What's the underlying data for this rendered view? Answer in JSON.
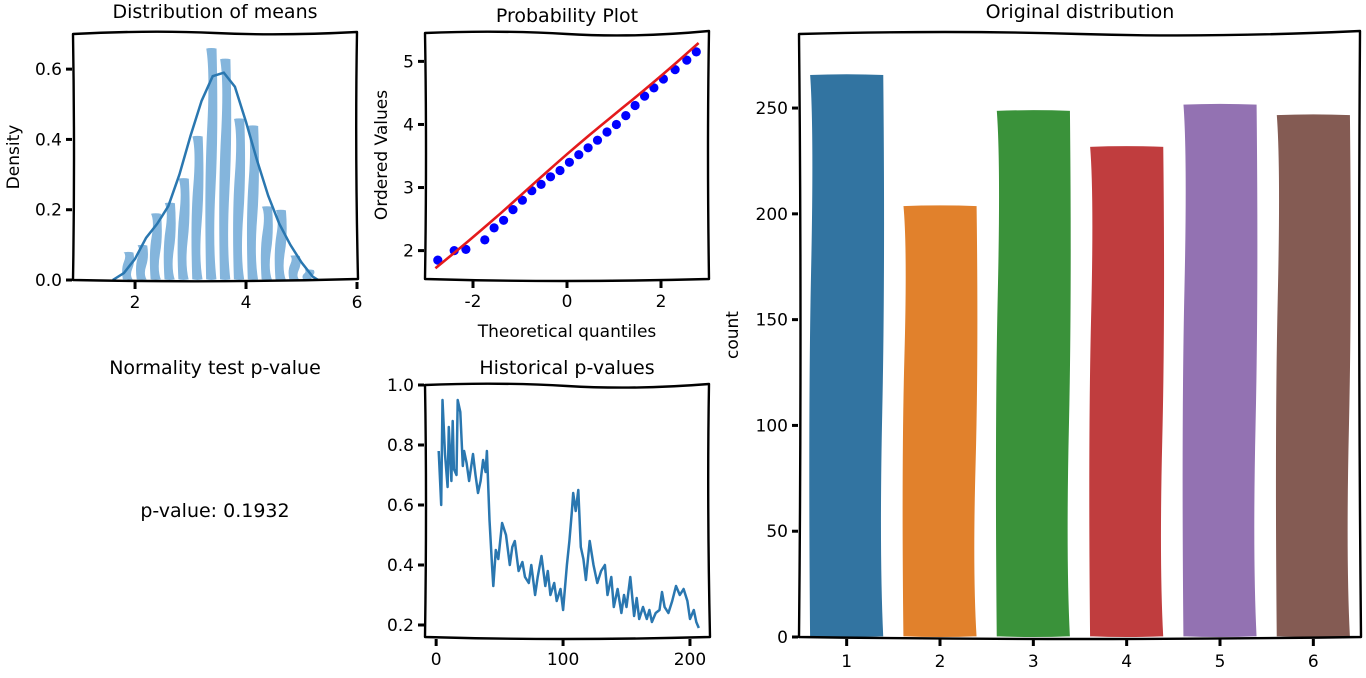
{
  "chart_data": [
    {
      "id": "hist",
      "type": "bar",
      "title": "Distribution of means",
      "xlabel": "",
      "ylabel": "Density",
      "xlim": [
        0.9,
        6.0
      ],
      "ylim": [
        0.0,
        0.7
      ],
      "xticks": [
        "2",
        "4",
        "6"
      ],
      "yticks": [
        "0.0",
        "0.2",
        "0.4",
        "0.6"
      ],
      "bin_width": 0.25,
      "bins": [
        {
          "x": 1.875,
          "h": 0.08
        },
        {
          "x": 2.125,
          "h": 0.1
        },
        {
          "x": 2.375,
          "h": 0.19
        },
        {
          "x": 2.625,
          "h": 0.22
        },
        {
          "x": 2.875,
          "h": 0.29
        },
        {
          "x": 3.125,
          "h": 0.41
        },
        {
          "x": 3.375,
          "h": 0.66
        },
        {
          "x": 3.625,
          "h": 0.63
        },
        {
          "x": 3.875,
          "h": 0.46
        },
        {
          "x": 4.125,
          "h": 0.44
        },
        {
          "x": 4.375,
          "h": 0.21
        },
        {
          "x": 4.625,
          "h": 0.2
        },
        {
          "x": 4.875,
          "h": 0.07
        },
        {
          "x": 5.125,
          "h": 0.03
        }
      ],
      "kde": {
        "x": [
          1.6,
          1.8,
          2.0,
          2.2,
          2.4,
          2.6,
          2.8,
          3.0,
          3.2,
          3.4,
          3.6,
          3.8,
          4.0,
          4.2,
          4.4,
          4.6,
          4.8,
          5.0,
          5.2,
          5.3
        ],
        "y": [
          0.0,
          0.02,
          0.06,
          0.12,
          0.16,
          0.21,
          0.3,
          0.41,
          0.51,
          0.58,
          0.59,
          0.55,
          0.45,
          0.34,
          0.24,
          0.16,
          0.1,
          0.05,
          0.01,
          0.0
        ]
      },
      "color": "#6fa8d6",
      "line_color": "#2a77b0"
    },
    {
      "id": "prob",
      "type": "scatter",
      "title": "Probability Plot",
      "xlabel": "Theoretical quantiles",
      "ylabel": "Ordered Values",
      "xlim": [
        -3.0,
        3.0
      ],
      "ylim": [
        1.55,
        5.45
      ],
      "xticks": [
        "-2",
        "0",
        "2"
      ],
      "yticks": [
        "2",
        "3",
        "4",
        "5"
      ],
      "points": {
        "x": [
          -2.75,
          -2.4,
          -2.15,
          -1.75,
          -1.55,
          -1.35,
          -1.15,
          -0.95,
          -0.75,
          -0.55,
          -0.35,
          -0.15,
          0.05,
          0.25,
          0.45,
          0.65,
          0.85,
          1.05,
          1.25,
          1.45,
          1.65,
          1.85,
          2.05,
          2.3,
          2.55,
          2.75
        ],
        "y": [
          1.85,
          2.0,
          2.02,
          2.17,
          2.36,
          2.48,
          2.65,
          2.8,
          2.95,
          3.05,
          3.17,
          3.27,
          3.4,
          3.52,
          3.63,
          3.75,
          3.88,
          4.0,
          4.14,
          4.3,
          4.45,
          4.58,
          4.72,
          4.87,
          5.02,
          5.15
        ]
      },
      "fit_line": {
        "x": [
          -2.8,
          2.8
        ],
        "y": [
          1.72,
          5.3
        ]
      },
      "point_color": "#0000ff",
      "line_color": "#e41a1c"
    },
    {
      "id": "pvals",
      "type": "line",
      "title": "Historical p-values",
      "xlabel": "",
      "ylabel": "",
      "xlim": [
        -8,
        215
      ],
      "ylim": [
        0.16,
        1.0
      ],
      "xticks": [
        "0",
        "100",
        "200"
      ],
      "yticks": [
        "0.2",
        "0.4",
        "0.6",
        "0.8",
        "1.0"
      ],
      "series": [
        {
          "x": [
            2,
            4,
            5,
            7,
            9,
            10,
            12,
            13,
            14,
            16,
            17,
            19,
            21,
            22,
            24,
            26,
            28,
            29,
            31,
            33,
            35,
            37,
            39,
            40,
            42,
            44,
            45,
            47,
            49,
            52,
            55,
            58,
            60,
            62,
            65,
            68,
            70,
            73,
            75,
            78,
            80,
            83,
            86,
            88,
            90,
            93,
            95,
            98,
            100,
            103,
            105,
            107,
            108,
            110,
            112,
            114,
            116,
            118,
            121,
            124,
            127,
            130,
            133,
            135,
            138,
            140,
            143,
            146,
            148,
            150,
            153,
            156,
            158,
            160,
            163,
            166,
            168,
            170,
            173,
            176,
            178,
            180,
            183,
            186,
            189,
            192,
            195,
            198,
            200,
            203,
            205,
            207
          ],
          "y": [
            0.78,
            0.6,
            0.95,
            0.77,
            0.66,
            0.86,
            0.68,
            0.88,
            0.72,
            0.7,
            0.95,
            0.91,
            0.73,
            0.78,
            0.74,
            0.68,
            0.74,
            0.77,
            0.7,
            0.64,
            0.68,
            0.75,
            0.71,
            0.78,
            0.55,
            0.4,
            0.33,
            0.45,
            0.42,
            0.54,
            0.5,
            0.4,
            0.46,
            0.48,
            0.38,
            0.41,
            0.36,
            0.34,
            0.4,
            0.3,
            0.36,
            0.43,
            0.33,
            0.38,
            0.3,
            0.34,
            0.28,
            0.32,
            0.25,
            0.4,
            0.48,
            0.58,
            0.64,
            0.58,
            0.65,
            0.46,
            0.42,
            0.35,
            0.48,
            0.4,
            0.34,
            0.38,
            0.4,
            0.3,
            0.36,
            0.26,
            0.32,
            0.24,
            0.3,
            0.26,
            0.36,
            0.23,
            0.29,
            0.22,
            0.26,
            0.22,
            0.25,
            0.21,
            0.24,
            0.25,
            0.31,
            0.26,
            0.24,
            0.28,
            0.33,
            0.3,
            0.32,
            0.28,
            0.22,
            0.25,
            0.21,
            0.19
          ]
        }
      ],
      "line_color": "#2a77b0"
    },
    {
      "id": "orig",
      "type": "bar",
      "title": "Original distribution",
      "xlabel": "",
      "ylabel": "count",
      "ylim": [
        0,
        285
      ],
      "categories": [
        "1",
        "2",
        "3",
        "4",
        "5",
        "6"
      ],
      "values": [
        266,
        204,
        249,
        232,
        252,
        247
      ],
      "yticks": [
        "0",
        "50",
        "100",
        "150",
        "200",
        "250"
      ],
      "colors": [
        "#3274a1",
        "#e1812c",
        "#3a923a",
        "#c03d3e",
        "#9372b2",
        "#845b53"
      ]
    }
  ],
  "text_panel": {
    "title": "Normality test p-value",
    "value_text": "p-value: 0.1932"
  }
}
